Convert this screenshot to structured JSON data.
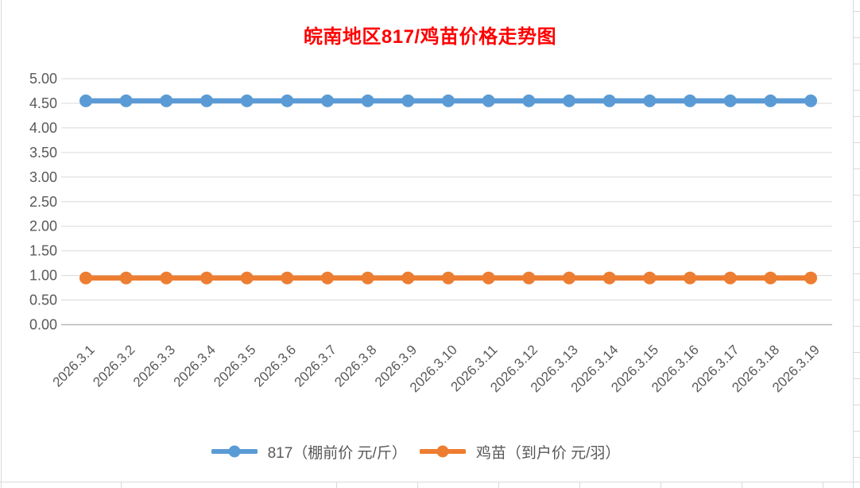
{
  "chart_data": {
    "type": "line",
    "title": "皖南地区817/鸡苗价格走势图",
    "title_color": "#FF0000",
    "categories": [
      "2026.3.1",
      "2026.3.2",
      "2026.3.3",
      "2026.3.4",
      "2026.3.5",
      "2026.3.6",
      "2026.3.7",
      "2026.3.8",
      "2026.3.9",
      "2026.3.10",
      "2026.3.11",
      "2026.3.12",
      "2026.3.13",
      "2026.3.14",
      "2026.3.15",
      "2026.3.16",
      "2026.3.17",
      "2026.3.18",
      "2026.3.19"
    ],
    "series": [
      {
        "name": "817（棚前价 元/斤）",
        "color": "#5B9BD5",
        "values": [
          4.55,
          4.55,
          4.55,
          4.55,
          4.55,
          4.55,
          4.55,
          4.55,
          4.55,
          4.55,
          4.55,
          4.55,
          4.55,
          4.55,
          4.55,
          4.55,
          4.55,
          4.55,
          4.55
        ]
      },
      {
        "name": "鸡苗（到户价 元/羽）",
        "color": "#ED7D31",
        "values": [
          0.95,
          0.95,
          0.95,
          0.95,
          0.95,
          0.95,
          0.95,
          0.95,
          0.95,
          0.95,
          0.95,
          0.95,
          0.95,
          0.95,
          0.95,
          0.95,
          0.95,
          0.95,
          0.95
        ]
      }
    ],
    "xlabel": "",
    "ylabel": "",
    "y_ticks": [
      "0.00",
      "0.50",
      "1.00",
      "1.50",
      "2.00",
      "2.50",
      "3.00",
      "3.50",
      "4.00",
      "4.50",
      "5.00"
    ],
    "ylim": [
      0,
      5
    ],
    "grid": true,
    "legend_position": "bottom",
    "marker": "circle",
    "tick_label_color": "#595959",
    "gridline_color": "#D9D9D9",
    "axis_line_color": "#B7B7B7"
  }
}
